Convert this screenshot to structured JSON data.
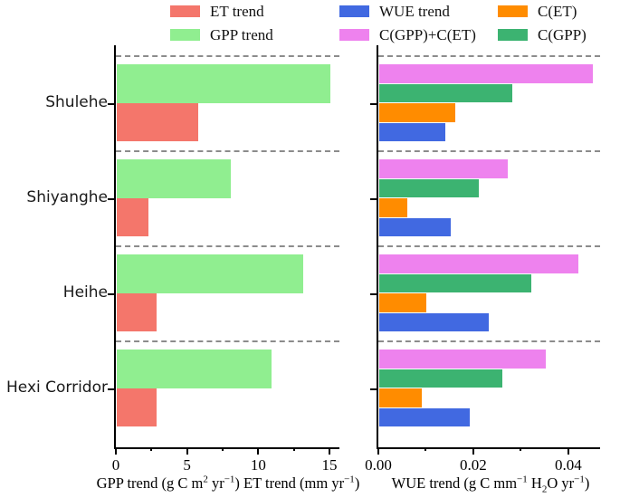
{
  "figure_title": "",
  "categories": [
    "Shulehe",
    "Shiyanghe",
    "Heihe",
    "Hexi Corridor"
  ],
  "colors": {
    "et_trend": "#F4766B",
    "gpp_trend": "#90EE90",
    "wue_trend": "#4169E1",
    "c_gpp_plus_c_et": "#EE82EE",
    "c_et": "#FF8C00",
    "c_gpp": "#3CB371",
    "dashed_separator": "#8c8c8c",
    "axis": "#000000"
  },
  "legend": {
    "items": [
      {
        "label": "ET trend",
        "color": "#F4766B",
        "col": 0,
        "row": 0
      },
      {
        "label": "GPP trend",
        "color": "#90EE90",
        "col": 0,
        "row": 1
      },
      {
        "label": "WUE trend",
        "color": "#4169E1",
        "col": 1,
        "row": 0
      },
      {
        "label": "C(GPP)+C(ET)",
        "color": "#EE82EE",
        "col": 1,
        "row": 1
      },
      {
        "label": "C(ET)",
        "color": "#FF8C00",
        "col": 2,
        "row": 0
      },
      {
        "label": "C(GPP)",
        "color": "#3CB371",
        "col": 2,
        "row": 1
      }
    ]
  },
  "chart_data": [
    {
      "type": "bar",
      "orientation": "horizontal",
      "panel": "left",
      "xlabel_plain": "GPP trend (g C m2 yr-1)  ET trend (mm yr-1)",
      "xlabel_parts": [
        {
          "t": "GPP trend (g C m"
        },
        {
          "sup": "2"
        },
        {
          "t": " yr"
        },
        {
          "sup": "−1"
        },
        {
          "t": ")  ET trend (mm yr"
        },
        {
          "sup": "−1"
        },
        {
          "t": ")"
        }
      ],
      "xlim": [
        0,
        15.7
      ],
      "xticks": [
        0,
        5,
        10,
        15
      ],
      "xtick_labels": [
        "0",
        "5",
        "10",
        "15"
      ],
      "xminor_ticks": [
        2.5,
        7.5,
        12.5
      ],
      "grid": "dashed-row-separators",
      "legend_position": "top",
      "categories": [
        "Shulehe",
        "Shiyanghe",
        "Heihe",
        "Hexi Corridor"
      ],
      "series": [
        {
          "name": "GPP trend",
          "color": "#90EE90",
          "values": [
            15.0,
            8.0,
            13.1,
            10.9
          ]
        },
        {
          "name": "ET trend",
          "color": "#F4766B",
          "values": [
            5.7,
            2.2,
            2.8,
            2.8
          ]
        }
      ]
    },
    {
      "type": "bar",
      "orientation": "horizontal",
      "panel": "right",
      "xlabel_plain": "WUE trend (g C mm-1 H2O yr-1)",
      "xlabel_parts": [
        {
          "t": "WUE trend (g C mm"
        },
        {
          "sup": "−1"
        },
        {
          "t": " H"
        },
        {
          "sub": "2"
        },
        {
          "t": "O yr"
        },
        {
          "sup": "−1"
        },
        {
          "t": ")"
        }
      ],
      "xlim": [
        0,
        0.0467
      ],
      "xticks": [
        0,
        0.02,
        0.04
      ],
      "xtick_labels": [
        "0.00",
        "0.02",
        "0.04"
      ],
      "xminor_ticks": [
        0.01,
        0.03
      ],
      "grid": "dashed-row-separators",
      "legend_position": "top",
      "categories": [
        "Shulehe",
        "Shiyanghe",
        "Heihe",
        "Hexi Corridor"
      ],
      "series": [
        {
          "name": "C(GPP)+C(ET)",
          "color": "#EE82EE",
          "values": [
            0.045,
            0.027,
            0.042,
            0.035
          ]
        },
        {
          "name": "C(GPP)",
          "color": "#3CB371",
          "values": [
            0.028,
            0.021,
            0.032,
            0.026
          ]
        },
        {
          "name": "C(ET)",
          "color": "#FF8C00",
          "values": [
            0.016,
            0.006,
            0.01,
            0.009
          ]
        },
        {
          "name": "WUE trend",
          "color": "#4169E1",
          "values": [
            0.014,
            0.015,
            0.023,
            0.019
          ]
        }
      ]
    }
  ]
}
